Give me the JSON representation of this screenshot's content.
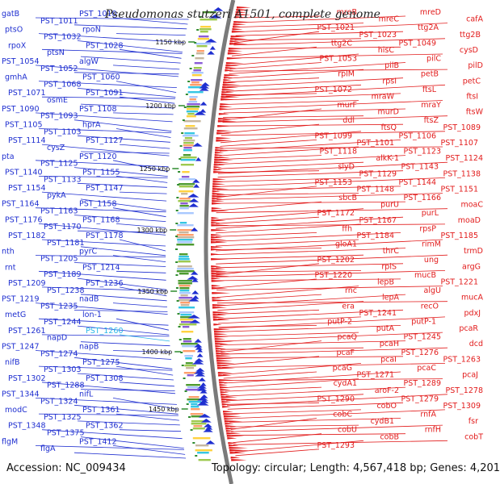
{
  "title": "Pseudomonas stutzeri A1501, complete genome",
  "footer": {
    "accession": "Accession: NC_009434",
    "summary": "Topology: circular; Length: 4,567,418 bp; Genes: 4,201"
  },
  "colors": {
    "minus_strand": "#1f2fd0",
    "plus_strand": "#e21b1b",
    "highlight": "#2ab7e8",
    "backbone": "#7a7a7a",
    "tick": "#2e8b2e"
  },
  "scale_ticks": [
    "1150 kbp",
    "1200 kbp",
    "1250 kbp",
    "1300 kbp",
    "1350 kbp",
    "1400 kbp",
    "1450 kbp"
  ],
  "left_labels": [
    "gatB",
    "PST_1011",
    "PST_1010",
    "ptsO",
    "PST_1032",
    "rpoN",
    "rpoX",
    "ptsN",
    "PST_1028",
    "PST_1054",
    "PST_1052",
    "algW",
    "gmhA",
    "PST_1068",
    "PST_1060",
    "PST_1071",
    "osmE",
    "PST_1091",
    "PST_1090",
    "PST_1093",
    "PST_1108",
    "PST_1105",
    "PST_1103",
    "hprA",
    "PST_1114",
    "cysZ",
    "PST_1127",
    "pta",
    "PST_1125",
    "PST_1120",
    "PST_1140",
    "PST_1133",
    "PST_1155",
    "PST_1154",
    "pykA",
    "PST_1147",
    "PST_1164",
    "PST_1163",
    "PST_1158",
    "PST_1176",
    "PST_1170",
    "PST_1168",
    "PST_1182",
    "PST_1181",
    "PST_1178",
    "nth",
    "PST_1205",
    "pyrC",
    "rnt",
    "PST_1189",
    "PST_1214",
    "PST_1209",
    "PST_1238",
    "PST_1236",
    "PST_1219",
    "PST_1235",
    "nadB",
    "metG",
    "PST_1244",
    "lon-1",
    "PST_1261",
    "napD",
    "PST_1260",
    "PST_1247",
    "PST_1274",
    "napB",
    "nifB",
    "PST_1303",
    "PST_1275",
    "PST_1302",
    "PST_1288",
    "PST_1308",
    "PST_1344",
    "PST_1324",
    "nifL",
    "modC",
    "PST_1325",
    "PST_1361",
    "PST_1348",
    "PST_1375",
    "PST_1362",
    "flgM",
    "flgA",
    "PST_1412"
  ],
  "right_labels": [
    "mreB",
    "mreC",
    "mreD",
    "cafA",
    "PST_1021",
    "PST_1023",
    "ttg2A",
    "ttg2B",
    "ttg2C",
    "hisC",
    "PST_1049",
    "cysD",
    "PST_1053",
    "pilB",
    "pilC",
    "pilD",
    "rplM",
    "rpsI",
    "petB",
    "petC",
    "PST_1072",
    "mraW",
    "ftsL",
    "ftsI",
    "murF",
    "murD",
    "mraY",
    "ftsW",
    "ddl",
    "ftsQ",
    "ftsZ",
    "PST_1089",
    "PST_1099",
    "PST_1101",
    "PST_1106",
    "PST_1107",
    "PST_1118",
    "alkK-1",
    "PST_1123",
    "PST_1124",
    "slyD",
    "PST_1129",
    "PST_1143",
    "PST_1138",
    "PST_1153",
    "PST_1148",
    "PST_1144",
    "PST_1151",
    "sbcB",
    "purU",
    "PST_1166",
    "moaC",
    "PST_1172",
    "PST_1167",
    "purL",
    "moaD",
    "ffh",
    "PST_1184",
    "rpsP",
    "PST_1185",
    "gloA1",
    "thrC",
    "rimM",
    "trmD",
    "PST_1202",
    "rplS",
    "ung",
    "argG",
    "PST_1220",
    "lepB",
    "mucB",
    "PST_1221",
    "rnc",
    "lepA",
    "algU",
    "mucA",
    "era",
    "PST_1241",
    "recO",
    "pdxJ",
    "putP-2",
    "putA",
    "putP-1",
    "pcaR",
    "pcaQ",
    "pcaH",
    "PST_1245",
    "dcd",
    "pcaF",
    "pcaI",
    "PST_1276",
    "PST_1263",
    "pcaG",
    "PST_1271",
    "pcaC",
    "pcaJ",
    "cydA1",
    "aroF-2",
    "PST_1289",
    "PST_1278",
    "PST_1290",
    "cobO",
    "PST_1279",
    "PST_1309",
    "cobC",
    "cydB1",
    "rnfA",
    "fsr",
    "cobU",
    "cobB",
    "rnfH",
    "cobT",
    "PST_1293"
  ],
  "highlight_gene": "PST_1260"
}
